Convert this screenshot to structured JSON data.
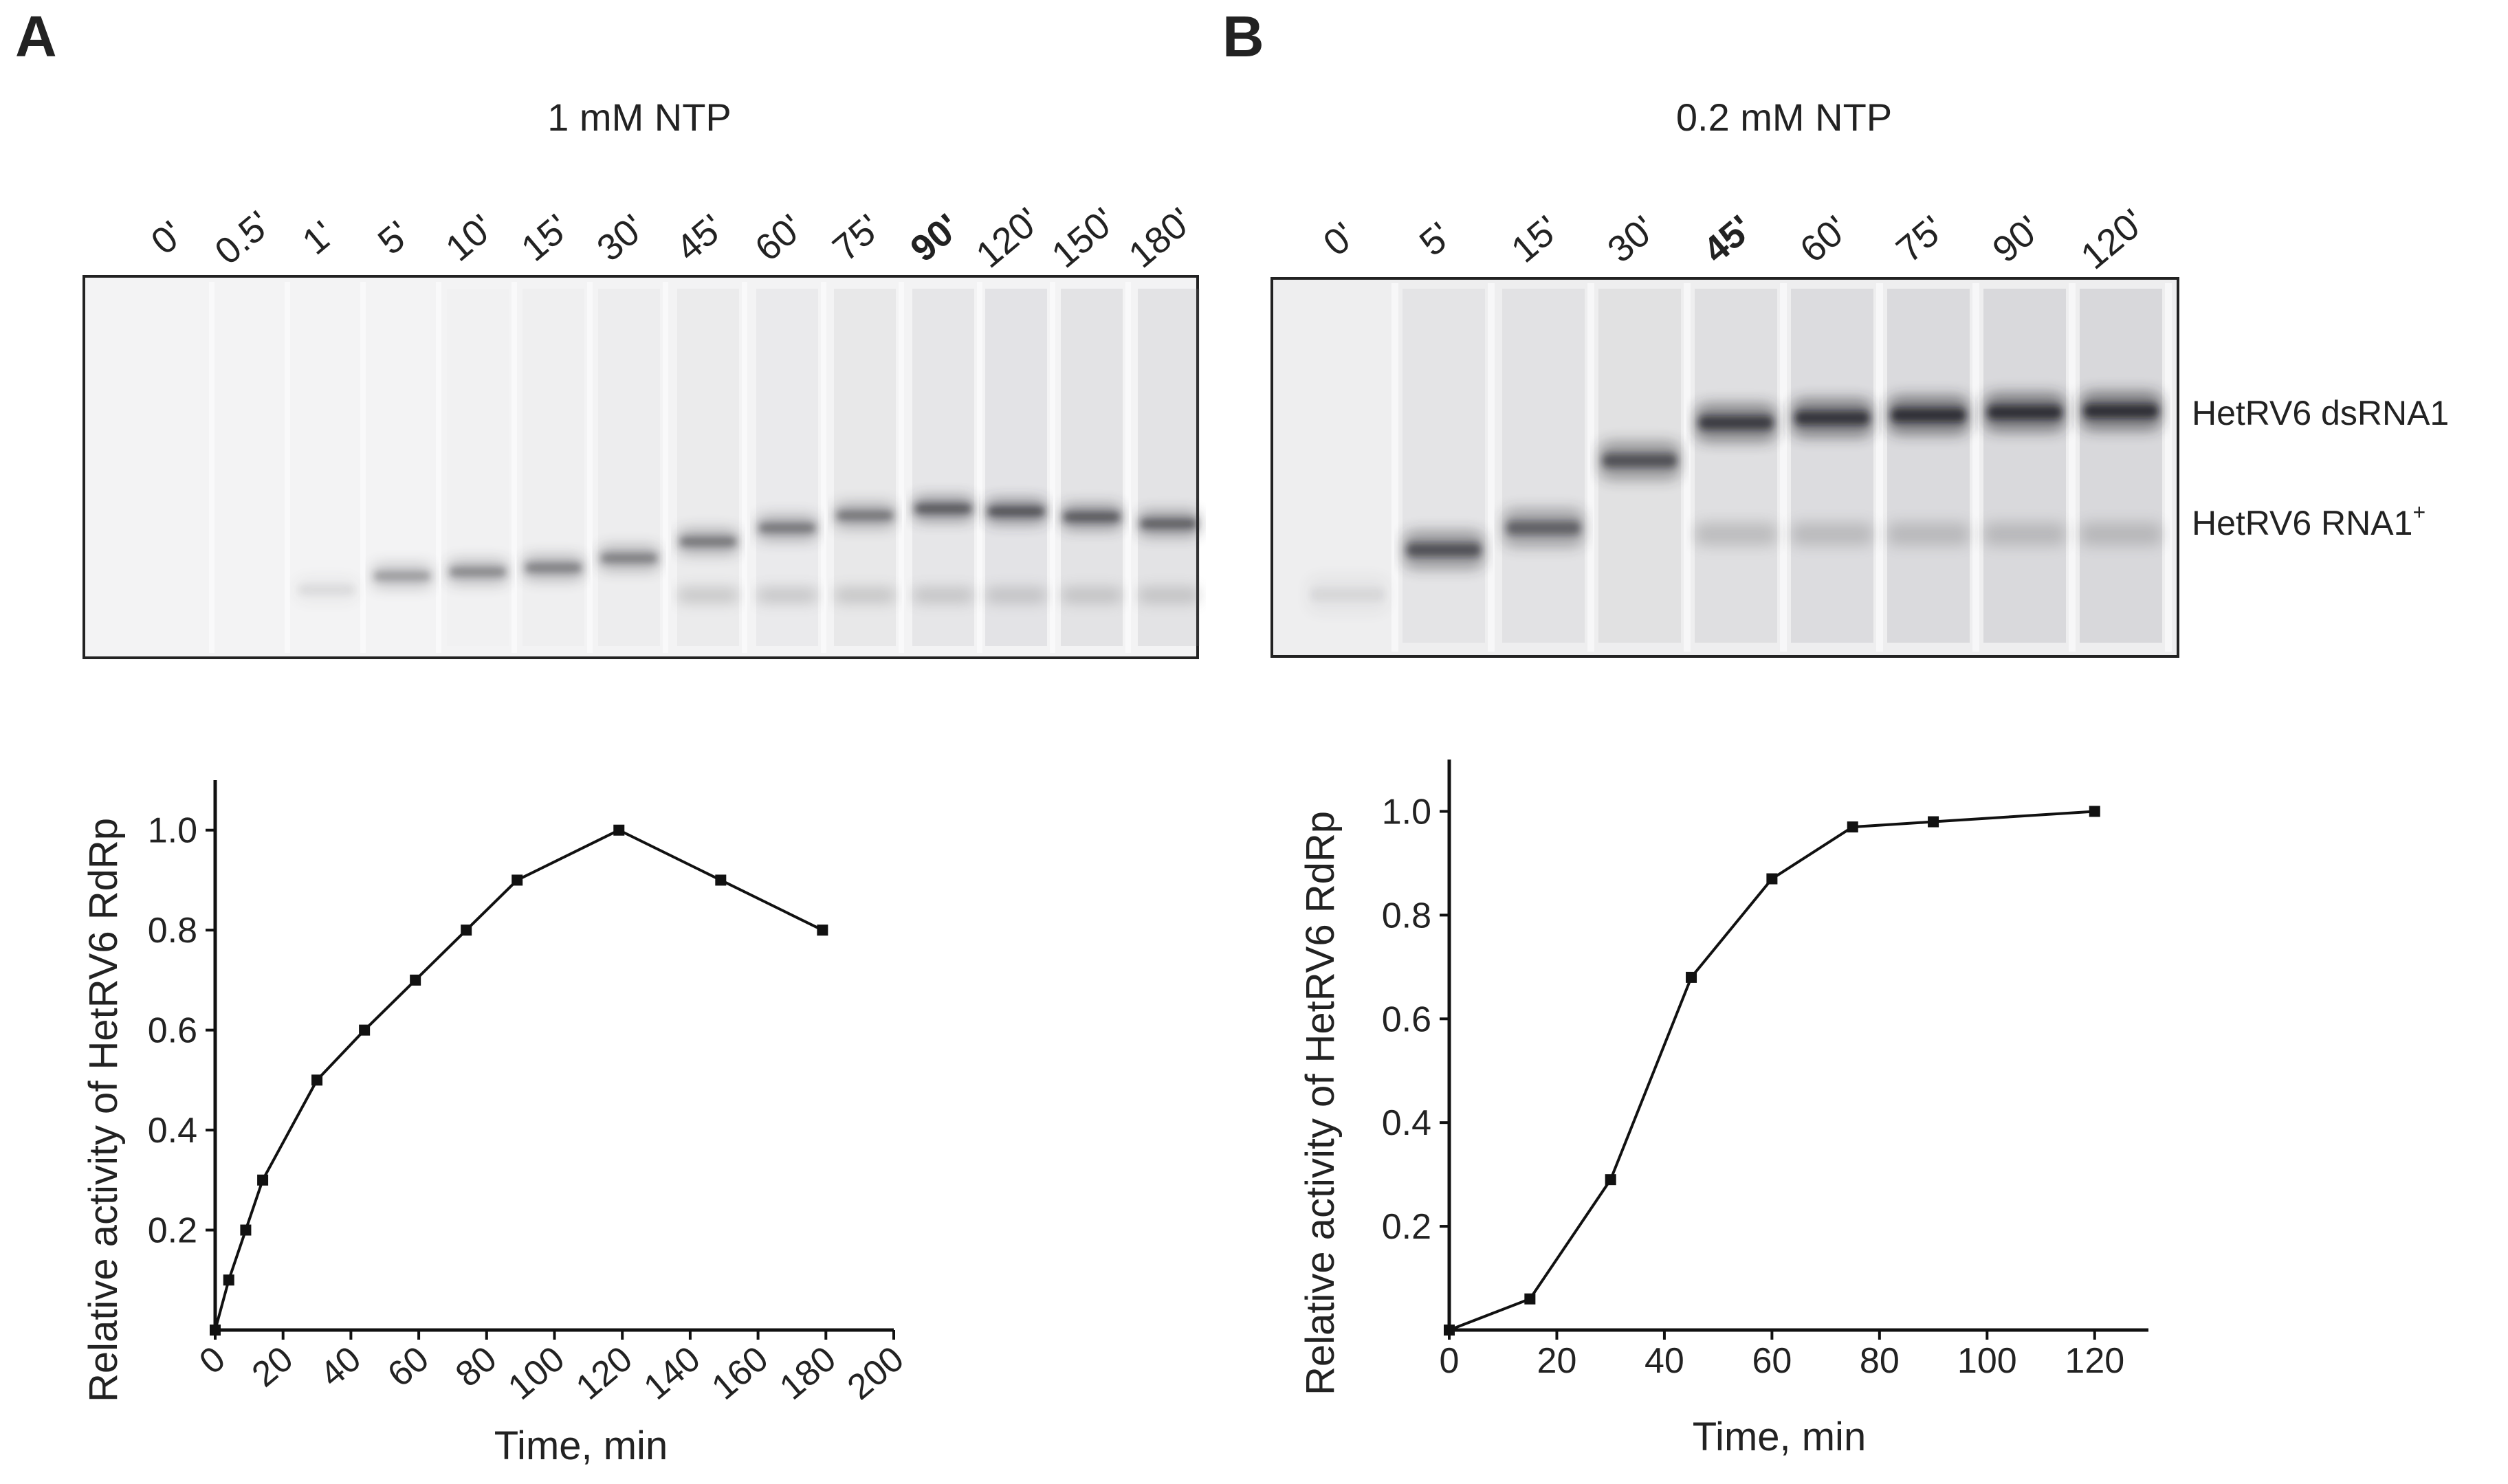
{
  "panel_a": {
    "letter": "A",
    "condition": "1 mM NTP",
    "lanes": [
      {
        "label": "0'",
        "bold": false
      },
      {
        "label": "0.5'",
        "bold": false
      },
      {
        "label": "1'",
        "bold": false
      },
      {
        "label": "5'",
        "bold": false
      },
      {
        "label": "10'",
        "bold": false
      },
      {
        "label": "15'",
        "bold": false
      },
      {
        "label": "30'",
        "bold": false
      },
      {
        "label": "45'",
        "bold": false
      },
      {
        "label": "60'",
        "bold": false
      },
      {
        "label": "75'",
        "bold": false
      },
      {
        "label": "90'",
        "bold": true
      },
      {
        "label": "120'",
        "bold": false
      },
      {
        "label": "150'",
        "bold": false
      },
      {
        "label": "180'",
        "bold": false
      }
    ]
  },
  "panel_b": {
    "letter": "B",
    "condition": "0.2 mM NTP",
    "lanes": [
      {
        "label": "0'",
        "bold": false
      },
      {
        "label": "5'",
        "bold": false
      },
      {
        "label": "15'",
        "bold": false
      },
      {
        "label": "30'",
        "bold": false
      },
      {
        "label": "45'",
        "bold": true
      },
      {
        "label": "60'",
        "bold": false
      },
      {
        "label": "75'",
        "bold": false
      },
      {
        "label": "90'",
        "bold": false
      },
      {
        "label": "120'",
        "bold": false
      }
    ],
    "band_labels": {
      "dsrna": "HetRV6 dsRNA1",
      "rna_plus": "HetRV6 RNA1",
      "rna_plus_sup": "+"
    }
  },
  "chart_data": [
    {
      "type": "line",
      "panel": "A",
      "title": "",
      "xlabel": "Time, min",
      "ylabel": "Relative activity of HetRV6 RdRp",
      "x": [
        0,
        4,
        9,
        14,
        30,
        44,
        59,
        74,
        89,
        119,
        149,
        179
      ],
      "y": [
        0.0,
        0.1,
        0.2,
        0.3,
        0.5,
        0.6,
        0.7,
        0.8,
        0.9,
        1.0,
        0.9,
        0.8
      ],
      "xlim": [
        0,
        200
      ],
      "ylim": [
        0,
        1.1
      ],
      "xticks": [
        0,
        20,
        40,
        60,
        80,
        100,
        120,
        140,
        160,
        180,
        200
      ],
      "xtick_labels": [
        "0",
        "20",
        "40",
        "60",
        "80",
        "100",
        "120",
        "140",
        "160",
        "180",
        "200"
      ],
      "yticks": [
        0.2,
        0.4,
        0.6,
        0.8,
        1.0
      ],
      "ytick_labels": [
        "0.2",
        "0.4",
        "0.6",
        "0.8",
        "1.0"
      ]
    },
    {
      "type": "line",
      "panel": "B",
      "title": "",
      "xlabel": "Time, min",
      "ylabel": "Relative activity of HetRV6 RdRp",
      "x": [
        0,
        15,
        30,
        45,
        60,
        75,
        90,
        120
      ],
      "y": [
        0.0,
        0.06,
        0.29,
        0.68,
        0.87,
        0.97,
        0.98,
        1.0
      ],
      "xlim": [
        0,
        130
      ],
      "ylim": [
        0,
        1.1
      ],
      "xticks": [
        0,
        20,
        40,
        60,
        80,
        100,
        120
      ],
      "xtick_labels": [
        "0",
        "20",
        "40",
        "60",
        "80",
        "100",
        "120"
      ],
      "yticks": [
        0.2,
        0.4,
        0.6,
        0.8,
        1.0
      ],
      "ytick_labels": [
        "0.2",
        "0.4",
        "0.6",
        "0.8",
        "1.0"
      ]
    }
  ]
}
